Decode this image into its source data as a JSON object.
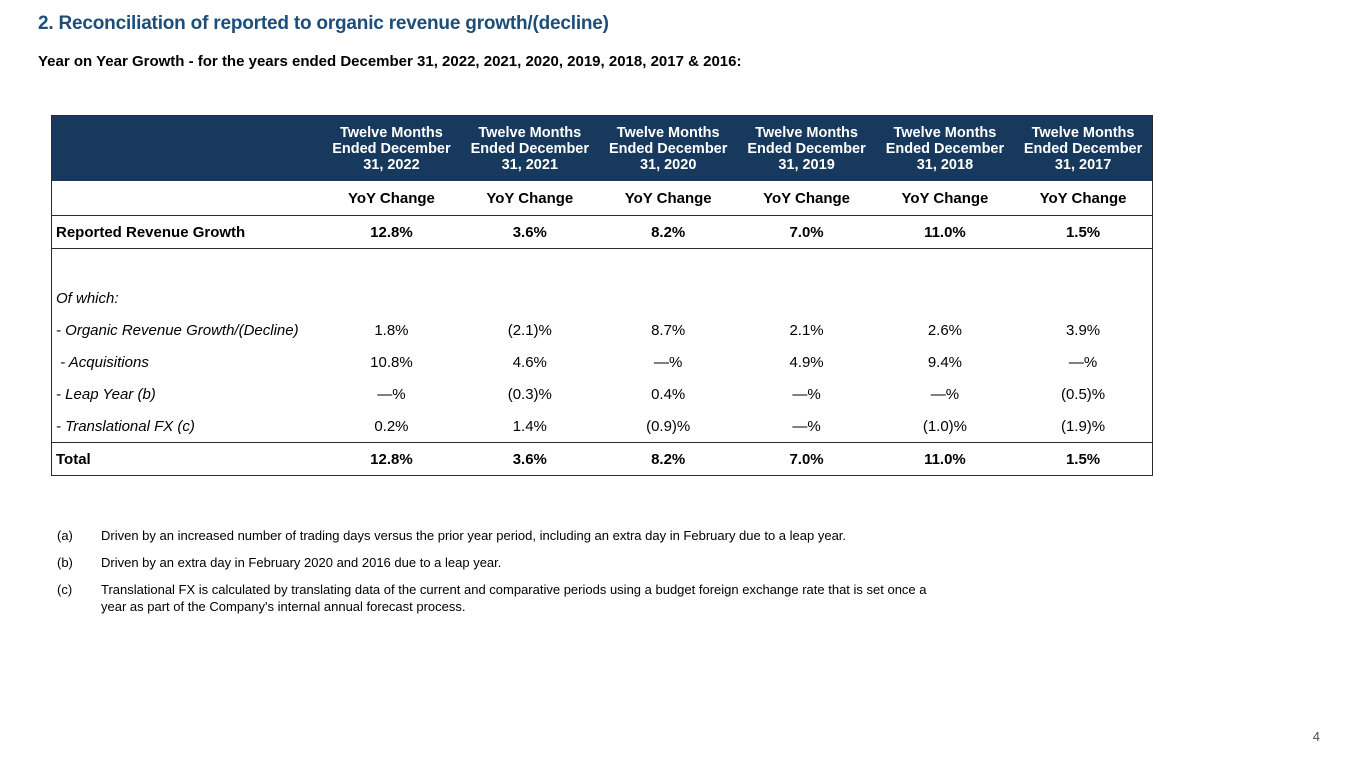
{
  "colors": {
    "header_bar": "#17395d",
    "title": "#1c4e79",
    "page_number": "#44546a"
  },
  "header": {
    "title": "2. Reconciliation of reported to organic revenue growth/(decline)",
    "subtitle": "Year on Year Growth - for the years ended December 31, 2022, 2021, 2020, 2019, 2018, 2017 & 2016:"
  },
  "table": {
    "columns": [
      "Twelve Months\nEnded December\n31, 2022",
      "Twelve Months\nEnded December\n31, 2021",
      "Twelve Months\nEnded December\n31, 2020",
      "Twelve Months\nEnded December\n31, 2019",
      "Twelve Months\nEnded December\n31, 2018",
      "Twelve Months\nEnded December\n31, 2017"
    ],
    "subheaders": [
      "YoY Change",
      "YoY Change",
      "YoY Change",
      "YoY Change",
      "YoY Change",
      "YoY Change"
    ],
    "rows": [
      {
        "kind": "reported",
        "label": "Reported Revenue Growth",
        "values": [
          "12.8%",
          "3.6%",
          "8.2%",
          "7.0%",
          "11.0%",
          "1.5%"
        ]
      },
      {
        "kind": "spacer",
        "label": "",
        "values": [
          "",
          "",
          "",
          "",
          "",
          ""
        ]
      },
      {
        "kind": "section",
        "label": "Of which:",
        "values": [
          "",
          "",
          "",
          "",
          "",
          ""
        ]
      },
      {
        "kind": "item",
        "label": "- Organic Revenue Growth/(Decline)",
        "values": [
          "1.8%",
          "(2.1)%",
          "8.7%",
          "2.1%",
          "2.6%",
          "3.9%"
        ]
      },
      {
        "kind": "item",
        "label": " - Acquisitions",
        "values": [
          "10.8%",
          "4.6%",
          "—%",
          "4.9%",
          "9.4%",
          "—%"
        ]
      },
      {
        "kind": "item",
        "label": "- Leap Year (b)",
        "values": [
          "—%",
          "(0.3)%",
          "0.4%",
          "—%",
          "—%",
          "(0.5)%"
        ]
      },
      {
        "kind": "item",
        "label": "- Translational FX (c)",
        "values": [
          "0.2%",
          "1.4%",
          "(0.9)%",
          "—%",
          "(1.0)%",
          "(1.9)%"
        ]
      },
      {
        "kind": "total",
        "label": "Total",
        "values": [
          "12.8%",
          "3.6%",
          "8.2%",
          "7.0%",
          "11.0%",
          "1.5%"
        ]
      }
    ]
  },
  "footnotes": [
    {
      "marker": "(a)",
      "text": "Driven by an increased number of trading days versus the prior year period, including an extra day in February due to a leap year."
    },
    {
      "marker": "(b)",
      "text": "Driven by an extra day in February 2020 and 2016 due to a leap year."
    },
    {
      "marker": "(c)",
      "text": "Translational FX is calculated by translating data of the current and comparative periods using a budget foreign exchange rate that is set once a year as part of the Company's internal annual forecast process."
    }
  ],
  "page_number": "4"
}
